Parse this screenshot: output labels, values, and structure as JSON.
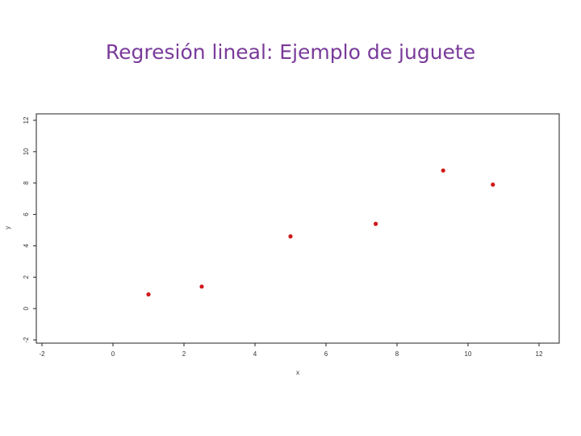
{
  "slide": {
    "title": "Regresión lineal: Ejemplo de juguete"
  },
  "chart_data": {
    "type": "scatter",
    "title": "Regresión lineal: Ejemplo de juguete",
    "xlabel": "x",
    "ylabel": "y",
    "xlim": [
      -2,
      12
    ],
    "ylim": [
      -2,
      12
    ],
    "x_ticks": [
      "-2",
      "0",
      "2",
      "4",
      "6",
      "8",
      "10",
      "12"
    ],
    "y_ticks": [
      "-2",
      "0",
      "2",
      "4",
      "6",
      "8",
      "10",
      "12"
    ],
    "x_tick_values": [
      -2,
      0,
      2,
      4,
      6,
      8,
      10,
      12
    ],
    "y_tick_values": [
      -2,
      0,
      2,
      4,
      6,
      8,
      10,
      12
    ],
    "grid": false,
    "point_color": "#d01818",
    "series": [
      {
        "x": [
          1,
          2.5,
          5,
          7.4,
          9.3,
          10.7
        ],
        "y": [
          0.9,
          1.4,
          4.6,
          5.4,
          8.8,
          7.9
        ]
      }
    ]
  }
}
